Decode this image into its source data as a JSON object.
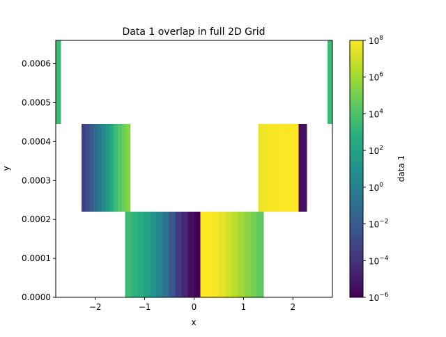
{
  "chart_data": {
    "type": "heatmap",
    "title": "Data 1 overlap in full 2D Grid",
    "xlabel": "x",
    "ylabel": "y",
    "xlim": [
      -2.8,
      2.8
    ],
    "ylim": [
      0,
      0.00066
    ],
    "x_ticks": [
      -2,
      -1,
      0,
      1,
      2
    ],
    "x_tick_labels": [
      "−2",
      "−1",
      "0",
      "1",
      "2"
    ],
    "y_ticks": [
      0,
      0.0001,
      0.0002,
      0.0003,
      0.0004,
      0.0005,
      0.0006
    ],
    "y_tick_labels": [
      "0.0000",
      "0.0001",
      "0.0002",
      "0.0003",
      "0.0004",
      "0.0005",
      "0.0006"
    ],
    "colorbar": {
      "label": "data 1",
      "scale": "log",
      "range_exponents": [
        -6,
        8
      ],
      "tick_exponents": [
        -6,
        -4,
        -2,
        0,
        2,
        4,
        6,
        8
      ],
      "tick_labels": [
        "10",
        "10",
        "10",
        "10",
        "10",
        "10",
        "10",
        "10"
      ],
      "tick_label_exponents": [
        "−6",
        "−4",
        "−2",
        "0",
        "2",
        "4",
        "6",
        "8"
      ],
      "colormap": "viridis"
    },
    "regions": [
      {
        "x_range": [
          -1.4,
          1.4
        ],
        "y_range": [
          0,
          0.00022
        ],
        "columns_log10": [
          3.5,
          3.0,
          2.5,
          2.0,
          1.2,
          0.3,
          -0.8,
          -2.2,
          -3.5,
          -4.5,
          -5.5,
          -6,
          8,
          8,
          7.8,
          7.5,
          7.0,
          6.5,
          6.0,
          5.5,
          5.0,
          4.5
        ]
      },
      {
        "x_range": [
          -2.28,
          -1.3
        ],
        "y_range": [
          0.00022,
          0.000445
        ],
        "columns_log10": [
          -3.5,
          -2.8,
          -2.0,
          -1.2,
          -0.3,
          0.6,
          1.5,
          2.5,
          3.5,
          4.2,
          4.8,
          5.3
        ]
      },
      {
        "x_range": [
          1.3,
          2.28
        ],
        "y_range": [
          0.00022,
          0.000445
        ],
        "columns_log10": [
          7.6,
          7.7,
          7.8,
          7.9,
          7.9,
          8,
          8,
          8,
          8,
          8,
          -5.5,
          -5.5
        ]
      },
      {
        "x_range": [
          -2.8,
          -2.7
        ],
        "y_range": [
          0.000445,
          0.00066
        ],
        "columns_log10": [
          3.5
        ]
      },
      {
        "x_range": [
          2.7,
          2.8
        ],
        "y_range": [
          0.000445,
          0.00066
        ],
        "columns_log10": [
          3.5
        ]
      }
    ]
  }
}
